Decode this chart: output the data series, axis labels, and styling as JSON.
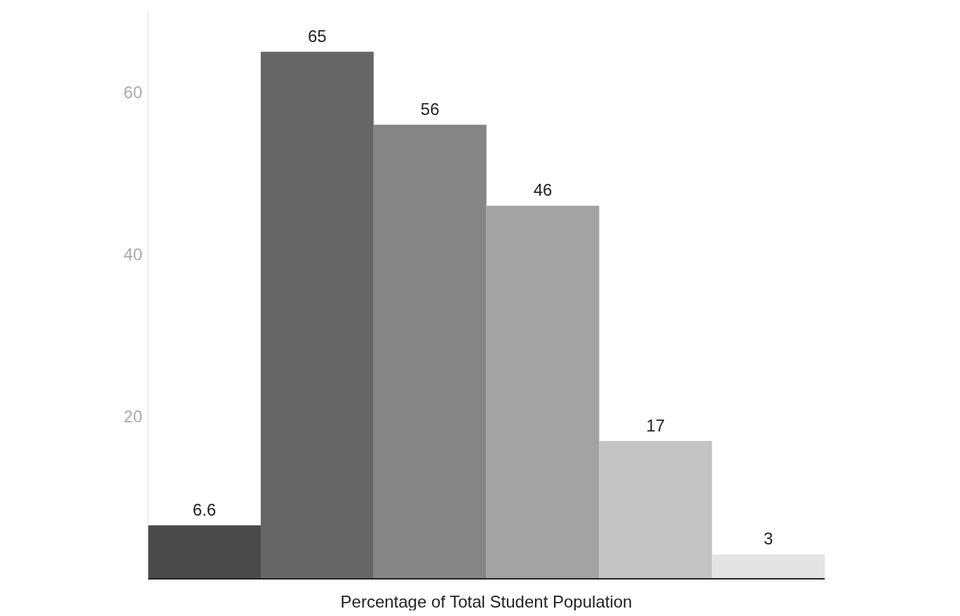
{
  "chart_data": {
    "type": "bar",
    "xlabel": "Percentage of Total Student Population",
    "categories": [
      null,
      null,
      null,
      null,
      null,
      null
    ],
    "values": [
      6.6,
      65,
      56,
      46,
      17,
      3
    ],
    "colors": [
      "#4a4a4a",
      "#666666",
      "#858585",
      "#a3a3a3",
      "#c4c4c4",
      "#e3e3e3"
    ],
    "ylim": [
      0,
      70
    ],
    "yticks": [
      20,
      40,
      60
    ],
    "grid": false,
    "data_labels": true
  }
}
